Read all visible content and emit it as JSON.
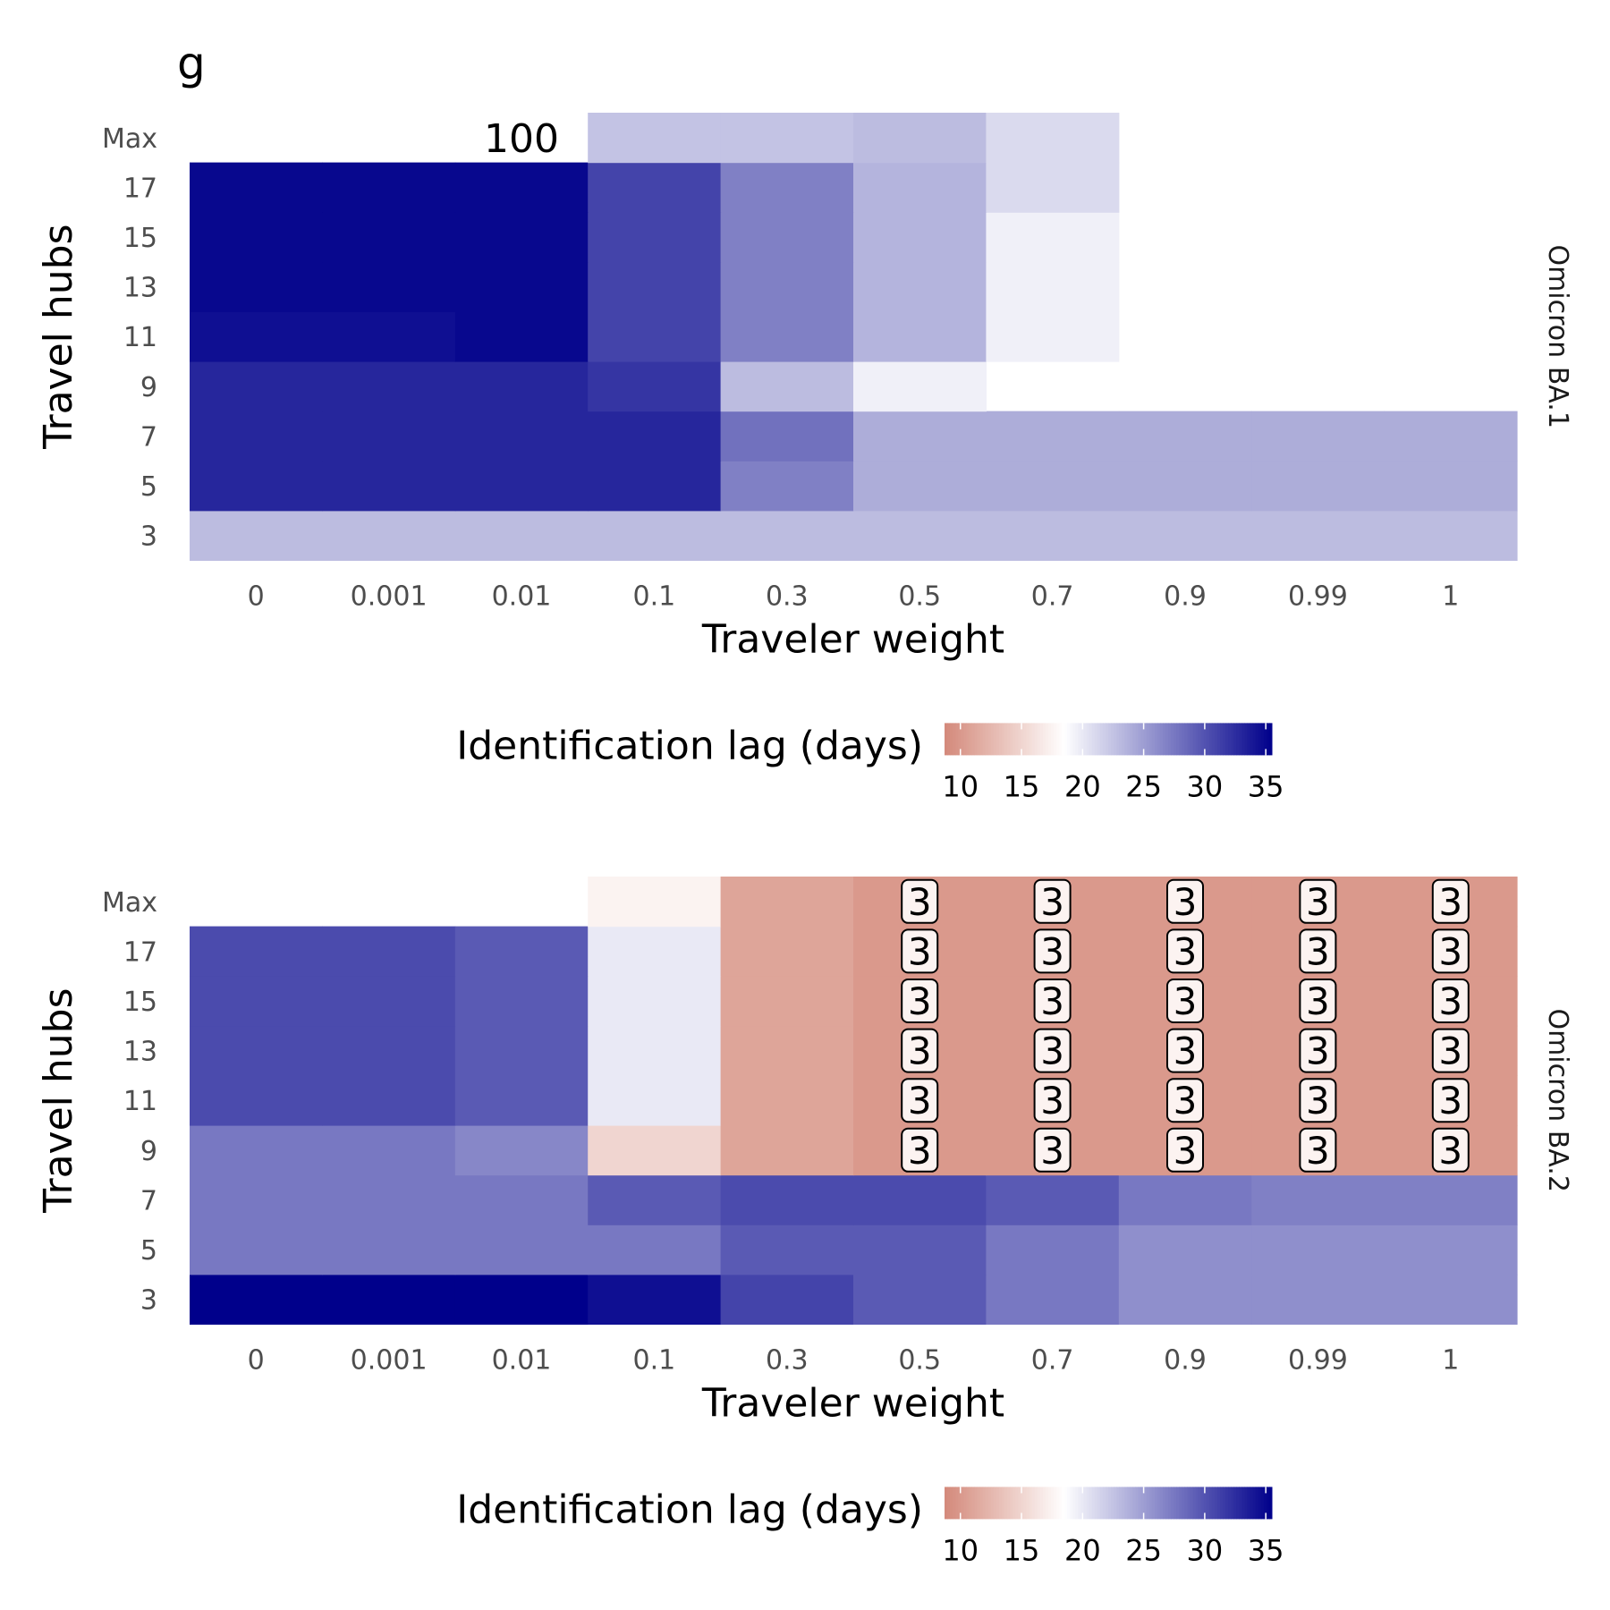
{
  "panel_label": "g",
  "colors": {
    "low": "#d4897a",
    "mid": "#ffffff",
    "high": "#00008b",
    "badge_fill": "#fcf3f1",
    "badge_stroke": "#000000"
  },
  "chart_data": [
    {
      "type": "heatmap",
      "strip_label": "Omicron BA.1",
      "xlabel": "Traveler weight",
      "ylabel": "Travel hubs",
      "x_categories": [
        "0",
        "0.001",
        "0.01",
        "0.1",
        "0.3",
        "0.5",
        "0.7",
        "0.9",
        "0.99",
        "1"
      ],
      "y_categories": [
        "3",
        "5",
        "7",
        "9",
        "11",
        "13",
        "15",
        "17",
        "Max"
      ],
      "values": [
        [
          23,
          23,
          23,
          23,
          23,
          23,
          23,
          23,
          23,
          23
        ],
        [
          33,
          33,
          33,
          33,
          27,
          24,
          24,
          24,
          24,
          24
        ],
        [
          33,
          33,
          33,
          33,
          28,
          24,
          24,
          24,
          24,
          24
        ],
        [
          33,
          33,
          33,
          32,
          23,
          19.5,
          null,
          null,
          null,
          null
        ],
        [
          34.5,
          34.5,
          35,
          31,
          27,
          23.5,
          19.5,
          null,
          null,
          null
        ],
        [
          35,
          35,
          35,
          31,
          27,
          23.5,
          19.5,
          null,
          null,
          null
        ],
        [
          35,
          35,
          35,
          31,
          27,
          23.5,
          19.5,
          null,
          null,
          null
        ],
        [
          35,
          35,
          35,
          31,
          27,
          23.5,
          21,
          null,
          null,
          null
        ],
        [
          null,
          null,
          null,
          22.5,
          22.5,
          23,
          21,
          null,
          null,
          null
        ]
      ],
      "annotations": [
        {
          "x": "0.01",
          "y": "Max",
          "text": "100",
          "style": "plain"
        }
      ],
      "legend": {
        "title": "Identification lag (days)",
        "ticks": [
          "10",
          "15",
          "20",
          "25",
          "30",
          "35"
        ],
        "limits": [
          8.7,
          35.5
        ],
        "position": "bottom"
      }
    },
    {
      "type": "heatmap",
      "strip_label": "Omicron BA.2",
      "xlabel": "Traveler weight",
      "ylabel": "Travel hubs",
      "x_categories": [
        "0",
        "0.001",
        "0.01",
        "0.1",
        "0.3",
        "0.5",
        "0.7",
        "0.9",
        "0.99",
        "1"
      ],
      "y_categories": [
        "3",
        "5",
        "7",
        "9",
        "11",
        "13",
        "15",
        "17",
        "Max"
      ],
      "values": [
        [
          36,
          36,
          36,
          34.5,
          31,
          29.5,
          27.5,
          26,
          26,
          26
        ],
        [
          27.5,
          27.5,
          27.5,
          27.5,
          29.5,
          29.5,
          27.5,
          26,
          26,
          26
        ],
        [
          27.5,
          27.5,
          27.5,
          29.5,
          30.5,
          30.5,
          29.5,
          27.5,
          27,
          27
        ],
        [
          27.5,
          27.5,
          26.5,
          15,
          11,
          10,
          10,
          10,
          10,
          10
        ],
        [
          30.5,
          30.5,
          29.5,
          20,
          11,
          10,
          10,
          10,
          10,
          10
        ],
        [
          30.5,
          30.5,
          29.5,
          20,
          11,
          10,
          10,
          10,
          10,
          10
        ],
        [
          30.5,
          30.5,
          29.5,
          20,
          11,
          10,
          10,
          10,
          10,
          10
        ],
        [
          30.5,
          30.5,
          29.5,
          20,
          11,
          10,
          10,
          10,
          10,
          10
        ],
        [
          null,
          null,
          null,
          17.5,
          11,
          10,
          10,
          10,
          10,
          10
        ]
      ],
      "annotations": [
        {
          "x": "0.5",
          "y": "9",
          "text": "3",
          "style": "badge"
        },
        {
          "x": "0.5",
          "y": "11",
          "text": "3",
          "style": "badge"
        },
        {
          "x": "0.5",
          "y": "13",
          "text": "3",
          "style": "badge"
        },
        {
          "x": "0.5",
          "y": "15",
          "text": "3",
          "style": "badge"
        },
        {
          "x": "0.5",
          "y": "17",
          "text": "3",
          "style": "badge"
        },
        {
          "x": "0.5",
          "y": "Max",
          "text": "3",
          "style": "badge"
        },
        {
          "x": "0.7",
          "y": "9",
          "text": "3",
          "style": "badge"
        },
        {
          "x": "0.7",
          "y": "11",
          "text": "3",
          "style": "badge"
        },
        {
          "x": "0.7",
          "y": "13",
          "text": "3",
          "style": "badge"
        },
        {
          "x": "0.7",
          "y": "15",
          "text": "3",
          "style": "badge"
        },
        {
          "x": "0.7",
          "y": "17",
          "text": "3",
          "style": "badge"
        },
        {
          "x": "0.7",
          "y": "Max",
          "text": "3",
          "style": "badge"
        },
        {
          "x": "0.9",
          "y": "9",
          "text": "3",
          "style": "badge"
        },
        {
          "x": "0.9",
          "y": "11",
          "text": "3",
          "style": "badge"
        },
        {
          "x": "0.9",
          "y": "13",
          "text": "3",
          "style": "badge"
        },
        {
          "x": "0.9",
          "y": "15",
          "text": "3",
          "style": "badge"
        },
        {
          "x": "0.9",
          "y": "17",
          "text": "3",
          "style": "badge"
        },
        {
          "x": "0.9",
          "y": "Max",
          "text": "3",
          "style": "badge"
        },
        {
          "x": "0.99",
          "y": "9",
          "text": "3",
          "style": "badge"
        },
        {
          "x": "0.99",
          "y": "11",
          "text": "3",
          "style": "badge"
        },
        {
          "x": "0.99",
          "y": "13",
          "text": "3",
          "style": "badge"
        },
        {
          "x": "0.99",
          "y": "15",
          "text": "3",
          "style": "badge"
        },
        {
          "x": "0.99",
          "y": "17",
          "text": "3",
          "style": "badge"
        },
        {
          "x": "0.99",
          "y": "Max",
          "text": "3",
          "style": "badge"
        },
        {
          "x": "1",
          "y": "9",
          "text": "3",
          "style": "badge"
        },
        {
          "x": "1",
          "y": "11",
          "text": "3",
          "style": "badge"
        },
        {
          "x": "1",
          "y": "13",
          "text": "3",
          "style": "badge"
        },
        {
          "x": "1",
          "y": "15",
          "text": "3",
          "style": "badge"
        },
        {
          "x": "1",
          "y": "17",
          "text": "3",
          "style": "badge"
        },
        {
          "x": "1",
          "y": "Max",
          "text": "3",
          "style": "badge"
        }
      ],
      "legend": {
        "title": "Identification lag (days)",
        "ticks": [
          "10",
          "15",
          "20",
          "25",
          "30",
          "35"
        ],
        "limits": [
          8.7,
          35.5
        ],
        "position": "bottom"
      }
    }
  ]
}
